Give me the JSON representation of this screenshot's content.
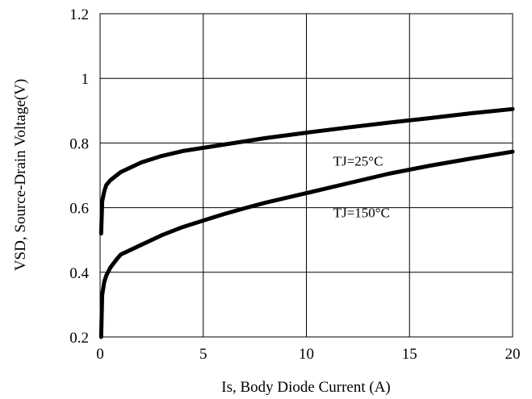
{
  "chart_data": {
    "type": "line",
    "title": "",
    "xlabel": "Is, Body Diode Current (A)",
    "ylabel": "VSD, Source-Drain Voltage(V)",
    "xlim": [
      0,
      20
    ],
    "ylim": [
      0.2,
      1.2
    ],
    "x_ticks": [
      "0",
      "5",
      "10",
      "15",
      "20"
    ],
    "y_ticks": [
      "0.2",
      "0.4",
      "0.6",
      "0.8",
      "1",
      "1.2"
    ],
    "grid": true,
    "series": [
      {
        "name": "TJ=25°C",
        "x": [
          0.05,
          0.1,
          0.2,
          0.3,
          0.5,
          0.8,
          1,
          1.5,
          2,
          3,
          4,
          5,
          6,
          7,
          8,
          10,
          12,
          14,
          16,
          18,
          20
        ],
        "y": [
          0.52,
          0.62,
          0.65,
          0.67,
          0.685,
          0.7,
          0.71,
          0.725,
          0.74,
          0.76,
          0.775,
          0.785,
          0.795,
          0.805,
          0.815,
          0.832,
          0.848,
          0.863,
          0.877,
          0.892,
          0.905
        ]
      },
      {
        "name": "TJ=150°C",
        "x": [
          0.05,
          0.1,
          0.2,
          0.3,
          0.5,
          0.8,
          1,
          1.5,
          2,
          3,
          4,
          5,
          6,
          7,
          8,
          10,
          12,
          14,
          16,
          18,
          20
        ],
        "y": [
          0.2,
          0.33,
          0.37,
          0.39,
          0.415,
          0.44,
          0.455,
          0.47,
          0.485,
          0.515,
          0.54,
          0.56,
          0.58,
          0.598,
          0.615,
          0.645,
          0.675,
          0.705,
          0.73,
          0.752,
          0.773
        ]
      }
    ],
    "annotations": [
      {
        "text": "TJ=25°C",
        "x": 11.3,
        "y": 0.745
      },
      {
        "text": "TJ=150°C",
        "x": 11.3,
        "y": 0.585
      }
    ]
  }
}
